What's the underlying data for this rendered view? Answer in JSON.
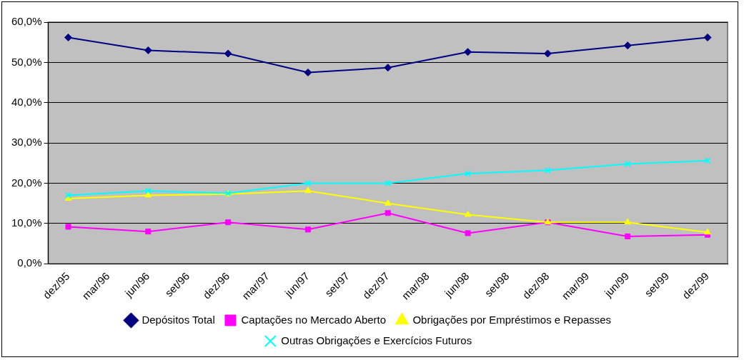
{
  "chart_data": {
    "type": "line",
    "categories": [
      "dez/95",
      "mar/96",
      "jun/96",
      "set/96",
      "dez/96",
      "mar/97",
      "jun/97",
      "set/97",
      "dez/97",
      "mar/98",
      "jun/98",
      "set/98",
      "dez/98",
      "mar/99",
      "jun/99",
      "set/99",
      "dez/99"
    ],
    "series": [
      {
        "name": "Depósitos Total",
        "color": "#000080",
        "marker": "diamond",
        "values": [
          56.2,
          null,
          53.0,
          null,
          52.2,
          null,
          47.5,
          null,
          48.7,
          null,
          52.6,
          null,
          52.2,
          null,
          54.2,
          null,
          56.2
        ]
      },
      {
        "name": "Captações no Mercado Aberto",
        "color": "#ff00ff",
        "marker": "square",
        "values": [
          9.2,
          null,
          8.0,
          null,
          10.3,
          null,
          8.5,
          null,
          12.6,
          null,
          7.6,
          null,
          10.3,
          null,
          6.8,
          null,
          7.2
        ]
      },
      {
        "name": "Obrigações por Empréstimos e Repasses",
        "color": "#ffff00",
        "marker": "triangle",
        "values": [
          16.2,
          null,
          17.0,
          null,
          17.3,
          null,
          18.1,
          null,
          15.0,
          null,
          12.2,
          null,
          10.3,
          null,
          10.3,
          null,
          7.8
        ]
      },
      {
        "name": "Outras Obrigações e Exercícios Futuros",
        "color": "#00ffff",
        "marker": "cross",
        "values": [
          17.0,
          null,
          18.1,
          null,
          17.5,
          null,
          20.0,
          null,
          20.0,
          null,
          22.4,
          null,
          23.2,
          null,
          24.8,
          null,
          25.6
        ]
      }
    ],
    "ylim": [
      0,
      60
    ],
    "yticks": [
      {
        "value": 0,
        "label": "0,0%"
      },
      {
        "value": 10,
        "label": "10,0%"
      },
      {
        "value": 20,
        "label": "20,0%"
      },
      {
        "value": 30,
        "label": "30,0%"
      },
      {
        "value": 40,
        "label": "40,0%"
      },
      {
        "value": 50,
        "label": "50,0%"
      },
      {
        "value": 60,
        "label": "60,0%"
      }
    ],
    "grid": "y",
    "legend": "bottom",
    "line_style": "solid"
  }
}
